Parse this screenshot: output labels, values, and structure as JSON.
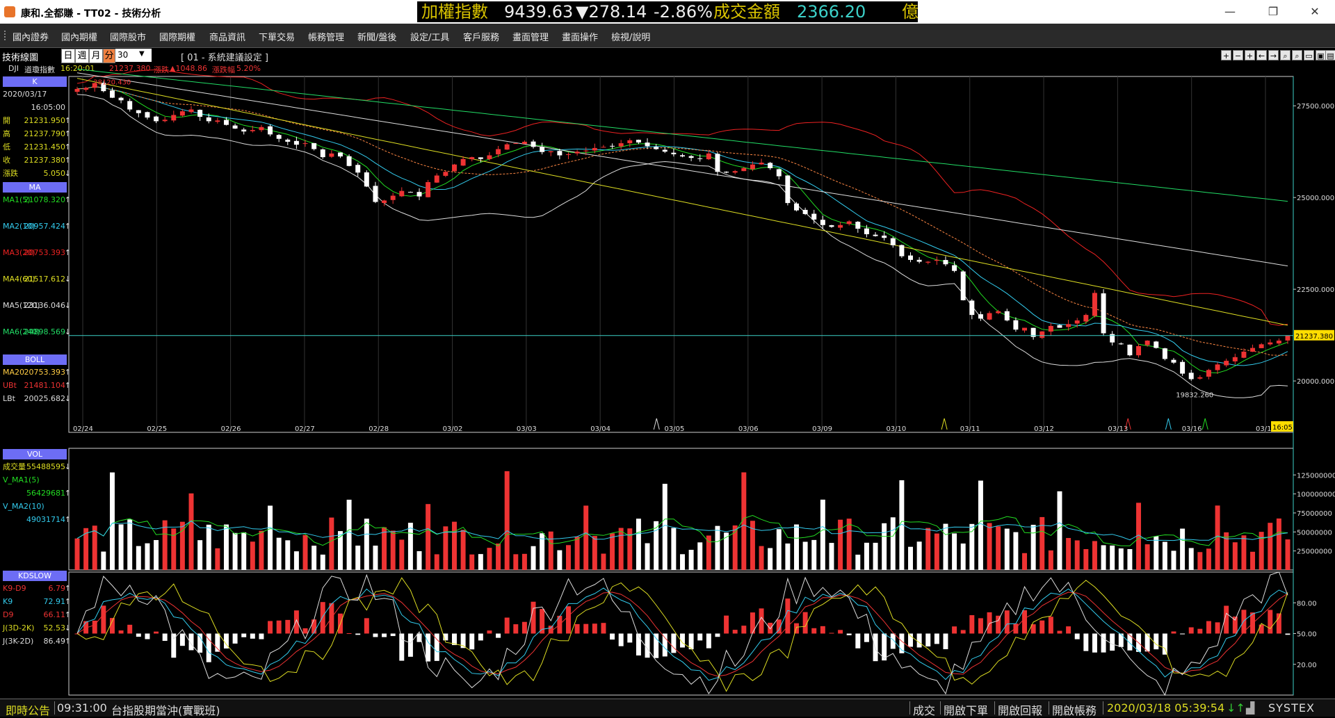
{
  "window": {
    "title": "康和.全都賺 - TT02 - 技術分析"
  },
  "ticker": {
    "label": "加權指數",
    "value": "9439.63",
    "change": "▼278.14",
    "pct": "-2.86%",
    "turnover_label": "成交金額",
    "turnover": "2366.20",
    "unit": "億"
  },
  "menu": [
    "國內證券",
    "國內期權",
    "國際股市",
    "國際期權",
    "商品資訊",
    "下單交易",
    "帳務管理",
    "新聞/盤後",
    "設定/工具",
    "客戶服務",
    "畫面管理",
    "畫面操作",
    "檢視/說明"
  ],
  "toolbar": {
    "label": "技術線圖",
    "periods": [
      "日",
      "週",
      "月",
      "分"
    ],
    "active_period": "分",
    "count": "30",
    "setting": "[ 01 - 系統建議設定 ]"
  },
  "subbar": {
    "symbol": "DJI",
    "name": "道瓊指數",
    "time": "16:20:01",
    "price": "21237.380",
    "change_label": "漲跌",
    "change": "▲1048.86",
    "pct_label": "漲跌幅",
    "pct": "5.20%"
  },
  "panel": {
    "k_header": "K",
    "date": "2020/03/17",
    "time": "16:05:00",
    "ohlc": [
      {
        "label": "開",
        "value": "21231.950",
        "arrow": "↑"
      },
      {
        "label": "高",
        "value": "21237.790",
        "arrow": "↑"
      },
      {
        "label": "低",
        "value": "21231.450",
        "arrow": "↑"
      },
      {
        "label": "收",
        "value": "21237.380",
        "arrow": "↑"
      },
      {
        "label": "漲跌",
        "value": "5.050",
        "arrow": "↓"
      }
    ],
    "ma_header": "MA",
    "ma": [
      {
        "label": "MA1(5)",
        "value": "21078.320",
        "arrow": "↑",
        "color": "#22dd22"
      },
      {
        "label": "MA2(10)",
        "value": "20957.424",
        "arrow": "↑",
        "color": "#33ccee"
      },
      {
        "label": "MA3(20)",
        "value": "20753.393",
        "arrow": "↑",
        "color": "#ee2222"
      },
      {
        "label": "MA4(60)",
        "value": "21517.612",
        "arrow": "↓",
        "color": "#dddd22"
      },
      {
        "label": "MA5(120)",
        "value": "23136.046",
        "arrow": "↓",
        "color": "#dddddd"
      },
      {
        "label": "MA6(240)",
        "value": "24898.569",
        "arrow": "↓",
        "color": "#22dd66"
      }
    ],
    "boll_header": "BOLL",
    "boll": [
      {
        "label": "MA20",
        "value": "20753.393",
        "arrow": "↑",
        "color": "#ffcc44"
      },
      {
        "label": "UBt",
        "value": "21481.104",
        "arrow": "↑",
        "color": "#ee3333"
      },
      {
        "label": "LBt",
        "value": "20025.682",
        "arrow": "↓",
        "color": "#dddddd"
      }
    ],
    "vol_header": "VOL",
    "vol": [
      {
        "label": "成交量",
        "value": "55488595",
        "arrow": "↓",
        "color": "#dddd22"
      },
      {
        "label": "V_MA1(5)",
        "value": "",
        "arrow": "",
        "color": "#22dd22"
      },
      {
        "label": "",
        "value": "56429681",
        "arrow": "↑",
        "color": "#22dd22"
      },
      {
        "label": "V_MA2(10)",
        "value": "",
        "arrow": "",
        "color": "#33ccee"
      },
      {
        "label": "",
        "value": "49031714",
        "arrow": "↑",
        "color": "#33ccee"
      }
    ],
    "kd_header": "KDSLOW",
    "kd": [
      {
        "label": "K9-D9",
        "value": "6.79",
        "arrow": "↑",
        "color": "#ee3333"
      },
      {
        "label": "K9",
        "value": "72.91",
        "arrow": "↑",
        "color": "#33ccee"
      },
      {
        "label": "D9",
        "value": "66.11",
        "arrow": "↑",
        "color": "#ee3333"
      },
      {
        "label": "J(3D-2K)",
        "value": "52.53",
        "arrow": "↓",
        "color": "#dddd22"
      },
      {
        "label": "J(3K-2D)",
        "value": "86.49",
        "arrow": "↑",
        "color": "#dddddd"
      }
    ]
  },
  "chart_data": {
    "type": "candlestick",
    "x_dates": [
      "02/24",
      "02/25",
      "02/26",
      "02/27",
      "02/28",
      "03/02",
      "03/03",
      "03/04",
      "03/05",
      "03/06",
      "03/09",
      "03/10",
      "03/11",
      "03/12",
      "03/13",
      "03/16",
      "03/17"
    ],
    "price_axis": [
      "27500.000",
      "25000.000",
      "22500.000",
      "20000.000"
    ],
    "price_ylim": [
      18600,
      28300
    ],
    "current_price": "21237.380",
    "current_time": "16:05",
    "annotations": {
      "high": "28120.430",
      "low": "19832.260"
    },
    "closes": [
      27960,
      27990,
      28120,
      27900,
      27720,
      27650,
      27400,
      27300,
      27180,
      27080,
      27120,
      27250,
      27350,
      27400,
      27200,
      27080,
      27100,
      26980,
      26880,
      26800,
      26840,
      26920,
      26720,
      26600,
      26520,
      26440,
      26480,
      26320,
      26100,
      26200,
      26120,
      25860,
      25680,
      25300,
      24880,
      24920,
      25050,
      25180,
      25150,
      25030,
      25420,
      25600,
      25700,
      25900,
      26050,
      26100,
      26050,
      26150,
      26320,
      26450,
      26480,
      26520,
      26380,
      26240,
      26260,
      26150,
      26180,
      26250,
      26280,
      26350,
      26380,
      26400,
      26480,
      26560,
      26500,
      26400,
      26320,
      26250,
      26180,
      26120,
      26080,
      26050,
      26200,
      25700,
      25680,
      25720,
      25800,
      25900,
      25950,
      25800,
      25580,
      24850,
      24650,
      24550,
      24400,
      24250,
      24200,
      24250,
      24350,
      24150,
      24000,
      23950,
      23900,
      23700,
      23400,
      23300,
      23250,
      23250,
      23300,
      23180,
      23000,
      22200,
      21800,
      21700,
      21850,
      21900,
      21650,
      21400,
      21450,
      21200,
      21350,
      21500,
      21450,
      21550,
      21650,
      21800,
      22400,
      21300,
      21050,
      21000,
      20700,
      20950,
      21100,
      20900,
      20600,
      20500,
      20200,
      20050,
      20100,
      20300,
      20450,
      20550,
      20650,
      20800,
      20900,
      21000,
      21050,
      21100,
      21237
    ],
    "vol_axis": [
      "125000000",
      "100000000",
      "75000000",
      "50000000",
      "25000000"
    ],
    "vol_ylim": [
      0,
      160000000
    ],
    "kd_axis": [
      "80.00",
      "50.00",
      "20.00"
    ],
    "kd_ylim": [
      -10,
      110
    ]
  },
  "statusbar": {
    "label": "即時公告",
    "time": "09:31:00",
    "news": "台指股期當沖(實戰班)",
    "buttons": [
      "成交",
      "開啟下單",
      "開啟回報",
      "開啟帳務"
    ],
    "clock": "2020/03/18 05:39:54",
    "brand": "SYSTEX"
  }
}
